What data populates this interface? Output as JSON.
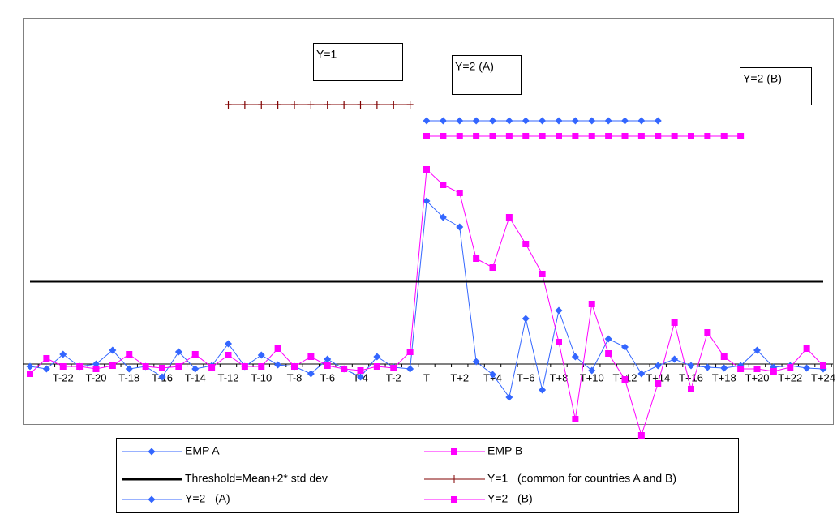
{
  "chart_data": {
    "type": "line",
    "categories": [
      null,
      null,
      "T-22",
      null,
      "T-20",
      null,
      "T-18",
      null,
      "T-16",
      null,
      "T-14",
      null,
      "T-12",
      null,
      "T-10",
      null,
      "T-8",
      null,
      "T-6",
      null,
      "T-4",
      null,
      "T-2",
      null,
      "T",
      null,
      "T+2",
      null,
      "T+4",
      null,
      "T+6",
      null,
      "T+8",
      null,
      "T+10",
      null,
      "T+12",
      null,
      "T+14",
      null,
      "T+16",
      null,
      "T+18",
      null,
      "T+20",
      null,
      "T+22",
      null,
      "T+24"
    ],
    "series": [
      {
        "name": "EMP A",
        "color": "#3366ff",
        "marker": "diamond",
        "values": [
          -0.03,
          -0.06,
          0.12,
          -0.03,
          0,
          0.17,
          -0.06,
          -0.03,
          -0.16,
          0.15,
          -0.06,
          -0.02,
          0.25,
          -0.03,
          0.11,
          -0.01,
          -0.03,
          -0.12,
          0.06,
          -0.06,
          -0.16,
          0.09,
          -0.04,
          -0.06,
          2.01,
          1.81,
          1.69,
          0.03,
          -0.13,
          -0.41,
          0.56,
          -0.32,
          0.66,
          0.09,
          -0.08,
          0.31,
          0.21,
          -0.12,
          -0.02,
          0.06,
          -0.02,
          -0.04,
          -0.05,
          -0.02,
          0.17,
          -0.04,
          -0.02,
          -0.05,
          -0.06
        ]
      },
      {
        "name": "EMP B",
        "color": "#ff00ff",
        "marker": "square",
        "values": [
          -0.12,
          0.07,
          -0.03,
          -0.03,
          -0.06,
          -0.02,
          0.12,
          -0.03,
          -0.05,
          -0.03,
          0.12,
          -0.04,
          0.11,
          -0.03,
          -0.03,
          0.19,
          -0.03,
          0.09,
          -0.02,
          -0.06,
          -0.08,
          -0.03,
          -0.05,
          0.15,
          2.4,
          2.21,
          2.11,
          1.3,
          1.19,
          1.81,
          1.48,
          1.11,
          0.27,
          -0.68,
          0.74,
          0.13,
          -0.19,
          -0.88,
          -0.24,
          0.51,
          -0.31,
          0.39,
          0.09,
          -0.06,
          -0.06,
          -0.09,
          -0.04,
          0.19,
          -0.02
        ]
      },
      {
        "name": "Threshold=Mean+2* std dev",
        "color": "#000000",
        "marker": "none",
        "values": [
          1.02,
          1.02,
          1.02,
          1.02,
          1.02,
          1.02,
          1.02,
          1.02,
          1.02,
          1.02,
          1.02,
          1.02,
          1.02,
          1.02,
          1.02,
          1.02,
          1.02,
          1.02,
          1.02,
          1.02,
          1.02,
          1.02,
          1.02,
          1.02,
          1.02,
          1.02,
          1.02,
          1.02,
          1.02,
          1.02,
          1.02,
          1.02,
          1.02,
          1.02,
          1.02,
          1.02,
          1.02,
          1.02,
          1.02,
          1.02,
          1.02,
          1.02,
          1.02,
          1.02,
          1.02,
          1.02,
          1.02,
          1.02,
          1.02
        ]
      },
      {
        "name": "Y=1   (common for countries A and B)",
        "color": "#800000",
        "marker": "plus",
        "values": [
          null,
          null,
          null,
          null,
          null,
          null,
          null,
          null,
          null,
          null,
          null,
          null,
          3.2,
          3.2,
          3.2,
          3.2,
          3.2,
          3.2,
          3.2,
          3.2,
          3.2,
          3.2,
          3.2,
          3.2,
          null,
          null,
          null,
          null,
          null,
          null,
          null,
          null,
          null,
          null,
          null,
          null,
          null,
          null,
          null,
          null,
          null,
          null,
          null,
          null,
          null,
          null,
          null,
          null,
          null
        ]
      },
      {
        "name": "Y=2   (A)",
        "color": "#3366ff",
        "marker": "diamond",
        "values": [
          null,
          null,
          null,
          null,
          null,
          null,
          null,
          null,
          null,
          null,
          null,
          null,
          null,
          null,
          null,
          null,
          null,
          null,
          null,
          null,
          null,
          null,
          null,
          null,
          3.0,
          3.0,
          3.0,
          3.0,
          3.0,
          3.0,
          3.0,
          3.0,
          3.0,
          3.0,
          3.0,
          3.0,
          3.0,
          3.0,
          3.0,
          null,
          null,
          null,
          null,
          null,
          null,
          null,
          null,
          null,
          null
        ]
      },
      {
        "name": "Y=2   (B)",
        "color": "#ff00ff",
        "marker": "square",
        "values": [
          null,
          null,
          null,
          null,
          null,
          null,
          null,
          null,
          null,
          null,
          null,
          null,
          null,
          null,
          null,
          null,
          null,
          null,
          null,
          null,
          null,
          null,
          null,
          null,
          2.81,
          2.81,
          2.81,
          2.81,
          2.81,
          2.81,
          2.81,
          2.81,
          2.81,
          2.81,
          2.81,
          2.81,
          2.81,
          2.81,
          2.81,
          2.81,
          2.81,
          2.81,
          2.81,
          2.81,
          null,
          null,
          null,
          null,
          null
        ]
      }
    ],
    "annotations": [
      "Y=1",
      "Y=2 (A)",
      "Y=2 (B)"
    ],
    "ylim": [
      -0.74,
      4.27
    ]
  }
}
